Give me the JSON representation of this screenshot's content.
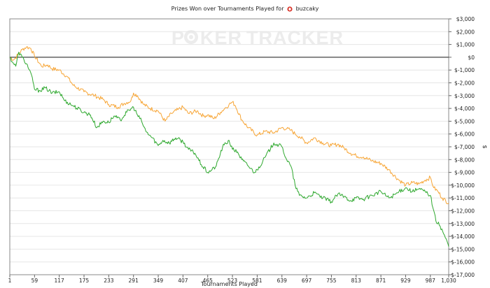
{
  "title": {
    "prefix": "Prizes Won over Tournaments Played for",
    "player": "buzcaky"
  },
  "watermark": {
    "part1": "P",
    "part2": "KER",
    "part3": "TRACKER"
  },
  "chart_data": {
    "type": "line",
    "xlabel": "Tournaments Played",
    "ylabel": "$",
    "xlim": [
      1,
      1030
    ],
    "ylim": [
      -17000,
      3000
    ],
    "x_ticks": [
      1,
      59,
      117,
      175,
      233,
      291,
      349,
      407,
      465,
      523,
      581,
      639,
      697,
      755,
      813,
      871,
      929,
      987,
      1030
    ],
    "x_tick_labels": [
      "1",
      "59",
      "117",
      "175",
      "233",
      "291",
      "349",
      "407",
      "465",
      "523",
      "581",
      "639",
      "697",
      "755",
      "813",
      "871",
      "929",
      "987",
      "1,030"
    ],
    "y_ticks": [
      3000,
      2000,
      1000,
      0,
      -1000,
      -2000,
      -3000,
      -4000,
      -5000,
      -6000,
      -7000,
      -8000,
      -9000,
      -10000,
      -11000,
      -12000,
      -13000,
      -14000,
      -15000,
      -16000,
      -17000
    ],
    "y_tick_labels": [
      "$3,000",
      "$2,000",
      "$1,000",
      "$0",
      "$-1,000",
      "$-2,000",
      "$-3,000",
      "$-4,000",
      "$-5,000",
      "$-6,000",
      "$-7,000",
      "$-8,000",
      "$-9,000",
      "$-10,000",
      "$-11,000",
      "$-12,000",
      "$-13,000",
      "$-14,000",
      "$-15,000",
      "$-16,000",
      "$-17,000"
    ],
    "series": [
      {
        "color": "#f7a535",
        "x": [
          1,
          10,
          20,
          30,
          40,
          50,
          59,
          75,
          90,
          100,
          117,
          135,
          150,
          175,
          200,
          220,
          233,
          255,
          270,
          285,
          291,
          300,
          315,
          330,
          349,
          365,
          380,
          395,
          407,
          420,
          440,
          455,
          465,
          480,
          495,
          505,
          515,
          523,
          530,
          545,
          560,
          581,
          600,
          620,
          639,
          650,
          660,
          670,
          680,
          697,
          715,
          735,
          755,
          770,
          785,
          800,
          813,
          830,
          850,
          871,
          890,
          910,
          929,
          945,
          960,
          975,
          987,
          995,
          1005,
          1015,
          1030
        ],
        "y": [
          0,
          -200,
          200,
          600,
          800,
          700,
          100,
          -700,
          -600,
          -900,
          -1000,
          -1500,
          -2200,
          -2700,
          -3000,
          -3300,
          -3700,
          -3900,
          -3600,
          -3400,
          -2800,
          -3000,
          -3700,
          -4000,
          -4200,
          -5000,
          -4400,
          -4100,
          -3900,
          -4400,
          -4200,
          -4600,
          -4500,
          -4800,
          -4300,
          -4000,
          -3700,
          -3500,
          -3800,
          -4900,
          -5500,
          -6100,
          -5800,
          -5900,
          -5500,
          -5600,
          -5700,
          -6000,
          -6200,
          -6700,
          -6300,
          -6700,
          -6900,
          -6800,
          -7100,
          -7500,
          -7700,
          -7800,
          -8100,
          -8300,
          -8800,
          -9500,
          -10000,
          -9800,
          -9900,
          -9600,
          -9400,
          -10200,
          -10500,
          -11000,
          -11400
        ]
      },
      {
        "color": "#2ea82e",
        "x": [
          1,
          8,
          15,
          22,
          30,
          40,
          50,
          59,
          70,
          85,
          100,
          117,
          130,
          150,
          175,
          190,
          205,
          220,
          233,
          245,
          260,
          275,
          291,
          300,
          310,
          320,
          335,
          349,
          360,
          375,
          390,
          407,
          420,
          435,
          450,
          465,
          475,
          485,
          500,
          515,
          523,
          535,
          545,
          560,
          575,
          581,
          600,
          620,
          639,
          650,
          660,
          670,
          680,
          697,
          715,
          735,
          755,
          770,
          785,
          800,
          813,
          830,
          850,
          871,
          890,
          910,
          929,
          945,
          960,
          975,
          987,
          995,
          1000,
          1010,
          1020,
          1030
        ],
        "y": [
          0,
          -400,
          -700,
          400,
          0,
          -500,
          -1200,
          -2500,
          -2600,
          -2400,
          -2800,
          -2700,
          -3400,
          -3800,
          -4300,
          -4500,
          -5500,
          -5000,
          -5100,
          -4600,
          -4900,
          -4300,
          -3900,
          -4500,
          -5000,
          -5800,
          -6300,
          -6900,
          -6500,
          -6700,
          -6300,
          -6600,
          -7200,
          -7500,
          -8400,
          -9000,
          -8800,
          -8500,
          -7000,
          -6500,
          -7200,
          -7400,
          -8000,
          -8500,
          -9000,
          -8800,
          -7800,
          -6700,
          -7000,
          -8000,
          -8500,
          -10000,
          -10800,
          -11000,
          -10600,
          -11000,
          -11300,
          -10700,
          -10900,
          -11200,
          -11000,
          -11100,
          -10800,
          -10500,
          -11000,
          -10600,
          -10200,
          -10500,
          -10300,
          -10500,
          -10800,
          -12000,
          -12800,
          -13200,
          -13900,
          -14800
        ]
      }
    ],
    "grid": true,
    "legend": "none"
  }
}
